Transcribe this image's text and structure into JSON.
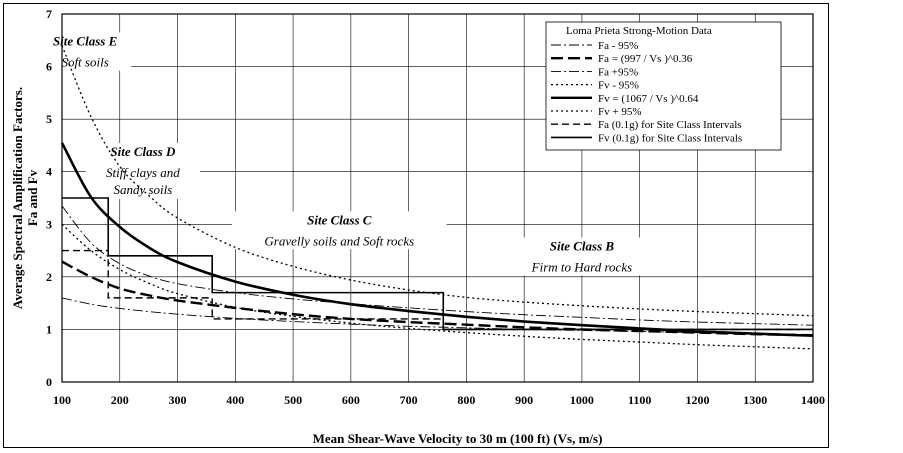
{
  "chart_data": {
    "type": "line",
    "xlabel": "Mean Shear-Wave Velocity to 30 m (100 ft) (Vs, m/s)",
    "ylabel_line1": "Average Spectral Amplification Factors.",
    "ylabel_line2": "Fa and Fv",
    "xlim": [
      100,
      1400
    ],
    "ylim": [
      0,
      7
    ],
    "xticks": [
      100,
      200,
      300,
      400,
      500,
      600,
      700,
      800,
      900,
      1000,
      1100,
      1200,
      1300,
      1400
    ],
    "yticks": [
      0,
      1,
      2,
      3,
      4,
      5,
      6,
      7
    ],
    "grid": true,
    "legend_title": "Loma Prieta Strong-Motion Data",
    "legend_position": "top-right",
    "series": [
      {
        "name": "Fa - 95%",
        "style": "dashdot-thin",
        "x": [
          100,
          150,
          200,
          250,
          300,
          400,
          500,
          600,
          700,
          800,
          900,
          1000,
          1100,
          1200,
          1300,
          1400
        ],
        "y": [
          1.6,
          1.48,
          1.4,
          1.34,
          1.29,
          1.21,
          1.15,
          1.1,
          1.06,
          1.03,
          1.0,
          0.98,
          0.96,
          0.94,
          0.92,
          0.9
        ]
      },
      {
        "name": "Fa = (997 / Vs )^0.36",
        "style": "dashed-thick",
        "x": [
          100,
          150,
          200,
          250,
          300,
          400,
          500,
          600,
          700,
          800,
          900,
          1000,
          1100,
          1200,
          1300,
          1400
        ],
        "y": [
          2.29,
          2.0,
          1.78,
          1.65,
          1.55,
          1.41,
          1.29,
          1.2,
          1.14,
          1.09,
          1.04,
          1.0,
          0.97,
          0.94,
          0.91,
          0.89
        ]
      },
      {
        "name": "Fa +95%",
        "style": "dashdot-thin",
        "x": [
          100,
          150,
          200,
          250,
          300,
          400,
          500,
          600,
          700,
          800,
          900,
          1000,
          1100,
          1200,
          1300,
          1400
        ],
        "y": [
          3.35,
          2.65,
          2.25,
          2.02,
          1.87,
          1.7,
          1.58,
          1.49,
          1.41,
          1.34,
          1.28,
          1.23,
          1.18,
          1.14,
          1.11,
          1.08
        ]
      },
      {
        "name": "Fv - 95%",
        "style": "dotted",
        "x": [
          100,
          150,
          200,
          250,
          300,
          400,
          500,
          600,
          700,
          800,
          900,
          1000,
          1100,
          1200,
          1300,
          1400
        ],
        "y": [
          3.0,
          2.5,
          2.14,
          1.88,
          1.68,
          1.42,
          1.25,
          1.12,
          1.02,
          0.94,
          0.87,
          0.81,
          0.76,
          0.71,
          0.67,
          0.63
        ]
      },
      {
        "name": "Fv = (1067 / Vs )^0.64",
        "style": "solid-thick",
        "x": [
          100,
          150,
          200,
          250,
          300,
          400,
          500,
          600,
          700,
          800,
          900,
          1000,
          1100,
          1200,
          1300,
          1400
        ],
        "y": [
          4.55,
          3.52,
          2.95,
          2.56,
          2.28,
          1.91,
          1.66,
          1.48,
          1.35,
          1.24,
          1.15,
          1.08,
          1.02,
          0.96,
          0.92,
          0.88
        ]
      },
      {
        "name": "Fv + 95%",
        "style": "dotted",
        "x": [
          100,
          150,
          200,
          250,
          300,
          400,
          500,
          600,
          700,
          800,
          900,
          1000,
          1100,
          1200,
          1300,
          1400
        ],
        "y": [
          6.4,
          5.05,
          4.1,
          3.55,
          3.12,
          2.56,
          2.2,
          1.94,
          1.75,
          1.61,
          1.52,
          1.45,
          1.39,
          1.34,
          1.3,
          1.26
        ]
      },
      {
        "name": "Fa (0.1g) for Site Class Intervals",
        "style": "dashed-step",
        "x": [
          100,
          180,
          180,
          360,
          360,
          760,
          760,
          1400
        ],
        "y": [
          2.5,
          2.5,
          1.6,
          1.6,
          1.2,
          1.2,
          1.0,
          1.0
        ]
      },
      {
        "name": "Fv (0.1g) for Site Class Intervals",
        "style": "solid-step",
        "x": [
          100,
          180,
          180,
          360,
          360,
          760,
          760,
          1400
        ],
        "y": [
          3.5,
          3.5,
          2.4,
          2.4,
          1.7,
          1.7,
          1.0,
          1.0
        ]
      }
    ],
    "annotations": [
      {
        "title": "Site Class E",
        "desc": "Soft soils",
        "x": 140,
        "y": 6.4
      },
      {
        "title": "Site Class D",
        "desc": "Stiff clays and",
        "desc2": "Sandy soils",
        "x": 240,
        "y": 4.3
      },
      {
        "title": "Site Class C",
        "desc": "Gravelly soils and Soft rocks",
        "x": 580,
        "y": 3.0
      },
      {
        "title": "Site Class B",
        "desc": "Firm to Hard rocks",
        "x": 1000,
        "y": 2.5
      }
    ]
  }
}
